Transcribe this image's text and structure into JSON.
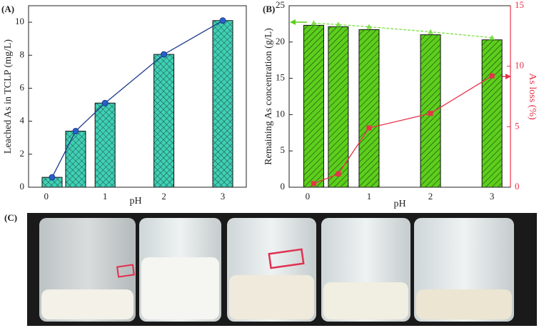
{
  "chart_data": [
    {
      "type": "bar",
      "panel": "(A)",
      "x_label": "pH",
      "y_label": "Leached As in TCLP (mg/L)",
      "x": [
        0.1,
        0.5,
        1,
        2,
        3
      ],
      "values": [
        0.6,
        3.4,
        5.1,
        8.05,
        10.1
      ],
      "color": "#3fd0b4",
      "line_color": "#1b3a8c",
      "xlim": [
        -0.3,
        3.4
      ],
      "xticks": [
        0,
        1,
        2,
        3
      ],
      "ylim": [
        0,
        11
      ],
      "yticks": [
        0,
        2,
        4,
        6,
        8,
        10
      ]
    },
    {
      "type": "combo",
      "panel": "(B)",
      "x_label": "pH",
      "y_label": "Remaining As concentration (g/L)",
      "y2_label": "As loss (%)",
      "x": [
        0.1,
        0.5,
        1,
        2,
        3
      ],
      "series": [
        {
          "kind": "bar",
          "color": "#5ccf1c",
          "values": [
            22.3,
            22.1,
            21.7,
            21.0,
            20.3
          ]
        },
        {
          "kind": "line",
          "color": "#7ee04a",
          "values": [
            22.6,
            22.4,
            22.1,
            21.4,
            20.6
          ]
        },
        {
          "kind": "line",
          "color": "#e8324a",
          "axis": "y2",
          "values": [
            0.3,
            1.1,
            4.9,
            6.1,
            9.2
          ]
        }
      ],
      "y2color": "#e8324a",
      "xlim": [
        -0.3,
        3.3
      ],
      "xticks": [
        0,
        1,
        2,
        3
      ],
      "ylim": [
        0,
        25
      ],
      "yticks": [
        0,
        5,
        10,
        15,
        20,
        25
      ],
      "y2lim": [
        0,
        15
      ],
      "y2ticks": [
        0,
        5,
        10,
        15
      ]
    }
  ],
  "photo": {
    "label": "(C)"
  }
}
